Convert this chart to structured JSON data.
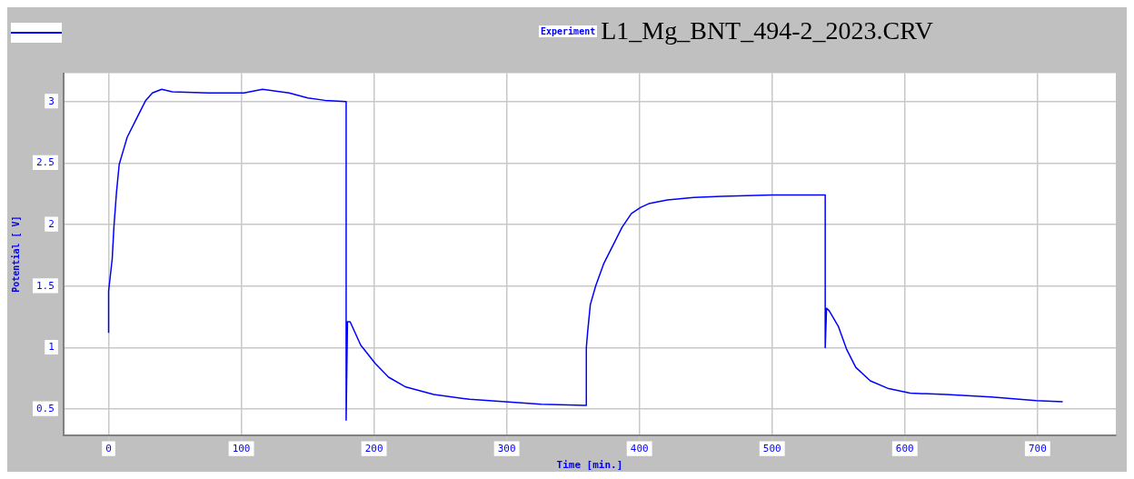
{
  "chart_data": {
    "type": "line",
    "title": "L1_Mg_BNT_494-2_2023.CRV",
    "subtitle": "Experiment",
    "xlabel": "Time [min.]",
    "ylabel": "Potential [ V]",
    "xlim": [
      -34,
      759
    ],
    "ylim": [
      0.29,
      3.23
    ],
    "xticks": [
      0,
      100,
      200,
      300,
      400,
      500,
      600,
      700
    ],
    "yticks": [
      0.5,
      1,
      1.5,
      2,
      2.5,
      3
    ],
    "grid": true,
    "marker": "none",
    "line_style": "solid",
    "series": [
      {
        "color": "#0000ff",
        "x": [
          0,
          0,
          2.7,
          4,
          6,
          8,
          11,
          14,
          21,
          28,
          33,
          40,
          48,
          75,
          102,
          116,
          136,
          150,
          163,
          179,
          179,
          180,
          182,
          190,
          201,
          211,
          224,
          245,
          272,
          299,
          326,
          359,
          360,
          360,
          361,
          363,
          367,
          373,
          380,
          387,
          394,
          401,
          407,
          421,
          441,
          462,
          500,
          540,
          540,
          541,
          543,
          550,
          556,
          563,
          574,
          587,
          604,
          631,
          665,
          699,
          719
        ],
        "values": [
          1.12,
          1.46,
          1.72,
          1.98,
          2.27,
          2.49,
          2.6,
          2.71,
          2.86,
          3.01,
          3.07,
          3.1,
          3.08,
          3.07,
          3.07,
          3.1,
          3.07,
          3.03,
          3.01,
          3.0,
          0.41,
          1.21,
          1.21,
          1.02,
          0.87,
          0.76,
          0.68,
          0.62,
          0.58,
          0.56,
          0.54,
          0.53,
          0.53,
          1.0,
          1.13,
          1.35,
          1.5,
          1.68,
          1.83,
          1.98,
          2.09,
          2.14,
          2.17,
          2.2,
          2.22,
          2.23,
          2.24,
          2.24,
          1.0,
          1.32,
          1.3,
          1.17,
          0.99,
          0.84,
          0.73,
          0.67,
          0.63,
          0.62,
          0.6,
          0.57,
          0.56
        ]
      }
    ]
  }
}
